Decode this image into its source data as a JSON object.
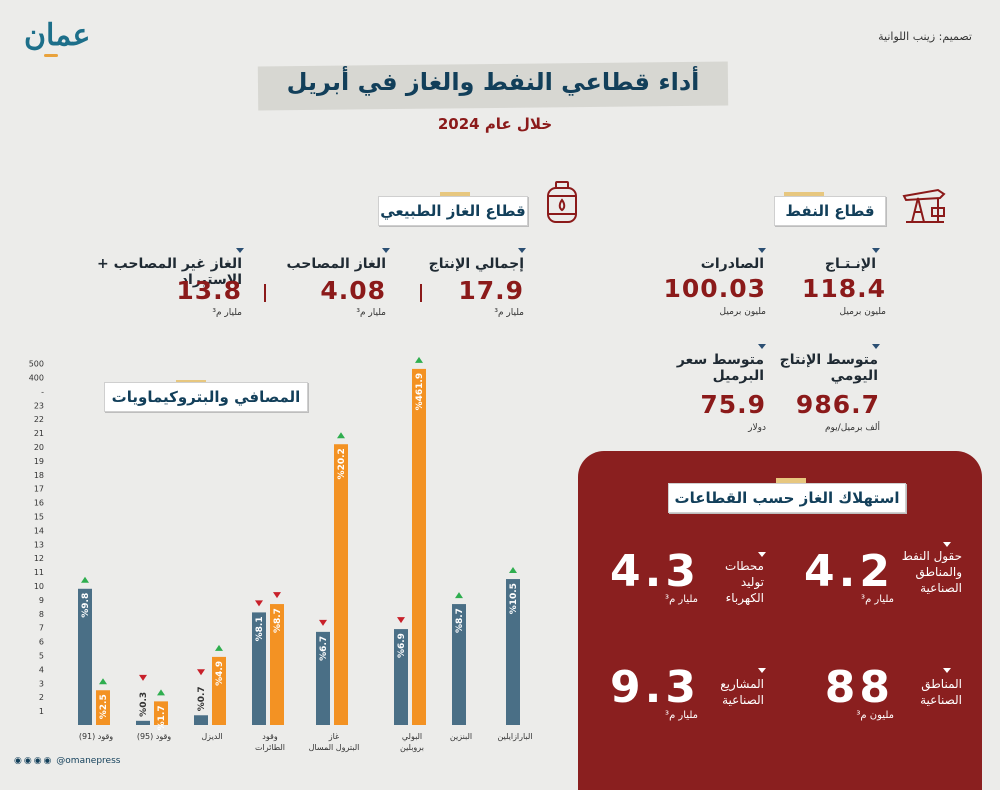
{
  "header": {
    "logo": "عمان",
    "credit": "تصميم: زينب اللوانية",
    "title": "أداء قطاعي النفط والغاز في أبريل",
    "subtitle": "خلال عام 2024"
  },
  "oil_sector": {
    "tag": "قطاع النفط",
    "icon": "oil-pump-icon",
    "stats": [
      {
        "label": "الإنـتـاج",
        "value": "118.4",
        "unit": "مليون برميل"
      },
      {
        "label": "الصادرات",
        "value": "100.03",
        "unit": "مليون برميل"
      },
      {
        "label": "متوسط الإنتاج اليومي",
        "value": "986.7",
        "unit": "ألف برميل/يوم"
      },
      {
        "label": "متوسط سعر البرميل",
        "value": "75.9",
        "unit": "دولار"
      }
    ]
  },
  "gas_sector": {
    "tag": "قطاع الغاز الطبيعي",
    "icon": "gas-tank-icon",
    "stats": [
      {
        "label": "إجمالي الإنتاج",
        "value": "17.9",
        "unit": "مليار م³"
      },
      {
        "label": "الغاز المصاحب",
        "value": "4.08",
        "unit": "مليار م³"
      },
      {
        "label": "الغاز غير المصاحب + الاستيراد",
        "value": "13.8",
        "unit": "مليار م³"
      }
    ]
  },
  "gas_consumption": {
    "tag": "استهلاك الغاز حسب القطاعات",
    "items": [
      {
        "label": "حقول النفط والمناطق الصناعية",
        "value": "4.2",
        "unit": "مليار م³"
      },
      {
        "label": "محطات توليد الكهرباء",
        "value": "4.3",
        "unit": "مليار م³"
      },
      {
        "label": "المناطق الصناعية",
        "value": "88",
        "unit": "مليون م³"
      },
      {
        "label": "المشاريع الصناعية",
        "value": "9.3",
        "unit": "مليار م³"
      }
    ]
  },
  "refining": {
    "tag": "المصافي والبتروكيماويات"
  },
  "chart_data": {
    "type": "bar",
    "title": "المصافي والبتروكيماويات",
    "y_ticks": [
      "1",
      "2",
      "3",
      "4",
      "5",
      "6",
      "7",
      "8",
      "9",
      "10",
      "11",
      "12",
      "13",
      "14",
      "15",
      "16",
      "17",
      "18",
      "19",
      "20",
      "21",
      "22",
      "23",
      "-",
      "400",
      "500"
    ],
    "colors": {
      "blue": "#4a6f86",
      "orange": "#f39223",
      "up": "#2fae4f",
      "down": "#c8202a"
    },
    "groups": [
      {
        "category": "وقود (91)",
        "bars": [
          {
            "label": "%9.8",
            "value": 9.8,
            "color": "blue",
            "trend": "up"
          },
          {
            "label": "%2.5",
            "value": 2.5,
            "color": "orange",
            "trend": "up"
          }
        ]
      },
      {
        "category": "وقود (95)",
        "bars": [
          {
            "label": "%0.3",
            "value": 0.3,
            "color": "blue",
            "trend": "down"
          },
          {
            "label": "%1.7",
            "value": 1.7,
            "color": "orange",
            "trend": "up"
          }
        ]
      },
      {
        "category": "الديزل",
        "bars": [
          {
            "label": "%0.7",
            "value": 0.7,
            "color": "blue",
            "trend": "down"
          },
          {
            "label": "%4.9",
            "value": 4.9,
            "color": "orange",
            "trend": "up"
          }
        ]
      },
      {
        "category": "وقود الطائرات",
        "bars": [
          {
            "label": "%8.1",
            "value": 8.1,
            "color": "blue",
            "trend": "down"
          },
          {
            "label": "%8.7",
            "value": 8.7,
            "color": "orange",
            "trend": "down"
          }
        ]
      },
      {
        "category": "غاز البترول المسال",
        "bars": [
          {
            "label": "%6.7",
            "value": 6.7,
            "color": "blue",
            "trend": "down"
          },
          {
            "label": "%20.2",
            "value": 20.2,
            "color": "orange",
            "trend": "up"
          }
        ]
      },
      {
        "category": "البولي بروبلين",
        "bars": [
          {
            "label": "%6.9",
            "value": 6.9,
            "color": "blue",
            "trend": "down"
          },
          {
            "label": "%461.9",
            "value": 461.9,
            "color": "orange",
            "trend": "up"
          }
        ]
      },
      {
        "category": "البنزين",
        "bars": [
          {
            "label": "%8.7",
            "value": 8.7,
            "color": "blue",
            "trend": "up"
          }
        ]
      },
      {
        "category": "البارازايلين",
        "bars": [
          {
            "label": "%10.5",
            "value": 10.5,
            "color": "blue",
            "trend": "up"
          }
        ]
      }
    ]
  },
  "footer": {
    "social": "@omanepress"
  }
}
